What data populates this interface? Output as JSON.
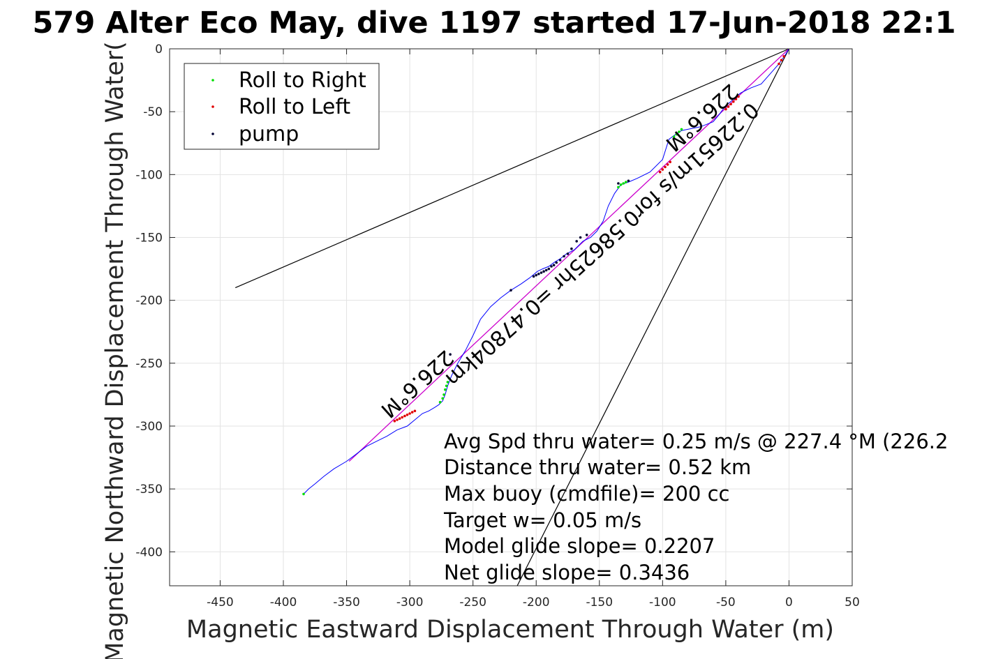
{
  "chart_data": {
    "type": "line",
    "title": "579 Alter Eco May, dive 1197 started 17-Jun-2018 22:1",
    "xlabel": "Magnetic Eastward Displacement Through Water (m)",
    "ylabel": "Magnetic Northward Displacement Through Water(",
    "xlim": [
      -490,
      50
    ],
    "ylim": [
      -427,
      0
    ],
    "xticks": [
      -450,
      -400,
      -350,
      -300,
      -250,
      -200,
      -150,
      -100,
      -50,
      0,
      50
    ],
    "yticks": [
      0,
      -50,
      -100,
      -150,
      -200,
      -250,
      -300,
      -350,
      -400
    ],
    "grid": true,
    "legend_position": "top-left",
    "legend": [
      {
        "name": "Roll to Right",
        "color": "#00e000"
      },
      {
        "name": "Roll to Left",
        "color": "#e00000"
      },
      {
        "name": "pump",
        "color": "#000033"
      }
    ],
    "track": {
      "color": "#0000ff",
      "x": [
        0,
        -3,
        -8,
        -15,
        -22,
        -30,
        -38,
        -42,
        -46,
        -50,
        -55,
        -60,
        -70,
        -80,
        -85,
        -88,
        -91,
        -95,
        -100,
        -110,
        -120,
        -127,
        -133,
        -138,
        -143,
        -147,
        -152,
        -157,
        -163,
        -170,
        -176,
        -181,
        -186,
        -190,
        -195,
        -199,
        -205,
        -212,
        -220,
        -228,
        -236,
        -244,
        -250,
        -256,
        -262,
        -267,
        -270,
        -272,
        -274,
        -277,
        -280,
        -285,
        -290,
        -296,
        -302,
        -310,
        -318,
        -326,
        -334,
        -342,
        -350,
        -360,
        -368,
        -375,
        -380,
        -384
      ],
      "y": [
        0,
        -5,
        -12,
        -20,
        -28,
        -31,
        -35,
        -38,
        -42,
        -45,
        -52,
        -58,
        -62,
        -64,
        -65,
        -67,
        -69,
        -72,
        -88,
        -98,
        -103,
        -106,
        -108,
        -115,
        -125,
        -137,
        -145,
        -150,
        -153,
        -160,
        -163,
        -167,
        -170,
        -173,
        -175,
        -177,
        -182,
        -187,
        -192,
        -198,
        -205,
        -215,
        -228,
        -240,
        -250,
        -260,
        -268,
        -275,
        -280,
        -283,
        -285,
        -288,
        -290,
        -295,
        -300,
        -303,
        -308,
        -312,
        -316,
        -322,
        -328,
        -334,
        -340,
        -346,
        -350,
        -354
      ]
    },
    "roll_right_points": {
      "color": "#00e000",
      "x": [
        -91,
        -89,
        -87,
        -85,
        -135,
        -133,
        -131,
        -129,
        -269,
        -270,
        -271,
        -272,
        -273,
        -274,
        -276,
        -384
      ],
      "y": [
        -70,
        -68,
        -66,
        -64,
        -110,
        -108,
        -107,
        -106,
        -262,
        -265,
        -268,
        -271,
        -275,
        -278,
        -281,
        -354
      ]
    },
    "roll_left_points": {
      "color": "#e00000",
      "x": [
        -4,
        -6,
        -8,
        -40,
        -42,
        -44,
        -46,
        -48,
        -50,
        -102,
        -100,
        -98,
        -96,
        -94,
        -296,
        -298,
        -300,
        -302,
        -304,
        -306,
        -308,
        -310,
        -312
      ],
      "y": [
        -6,
        -9,
        -12,
        -38,
        -40,
        -42,
        -44,
        -46,
        -48,
        -98,
        -96,
        -94,
        -92,
        -90,
        -288,
        -289,
        -290,
        -291,
        -292,
        -293,
        -294,
        -295,
        -296
      ]
    },
    "pump_points": {
      "color": "#000033",
      "x": [
        -165,
        -168,
        -172,
        -175,
        -178,
        -181,
        -184,
        -186,
        -188,
        -190,
        -192,
        -194,
        -196,
        -198,
        -200,
        -202,
        -220,
        -268,
        -160,
        -135,
        -127
      ],
      "y": [
        -150,
        -153,
        -159,
        -163,
        -165,
        -168,
        -170,
        -172,
        -173,
        -175,
        -176,
        -177,
        -178,
        -179,
        -180,
        -181,
        -192,
        -243,
        -148,
        -107,
        -105
      ]
    },
    "model_line": {
      "color": "#cc00cc",
      "x": [
        0,
        -348
      ],
      "y": [
        0,
        -328
      ]
    },
    "ref_line_1": {
      "color": "#000000",
      "x": [
        0,
        -438
      ],
      "y": [
        0,
        -190
      ]
    },
    "ref_line_2": {
      "color": "#000000",
      "x": [
        0,
        -215
      ],
      "y": [
        0,
        -427
      ]
    },
    "line_labels": [
      {
        "text": "226.6°M"
      },
      {
        "text": "226.6°M"
      },
      {
        "text": "0.22651m/s for0.58625hr =0.47804km"
      }
    ],
    "annotations": [
      "Avg Spd thru water=  0.25 m/s @ 227.4 °M (226.2",
      "Distance thru water=  0.52 km",
      "Max buoy (cmdfile)= 200 cc",
      "Target w= 0.05 m/s",
      "Model glide slope= 0.2207",
      "Net glide slope= 0.3436"
    ]
  }
}
